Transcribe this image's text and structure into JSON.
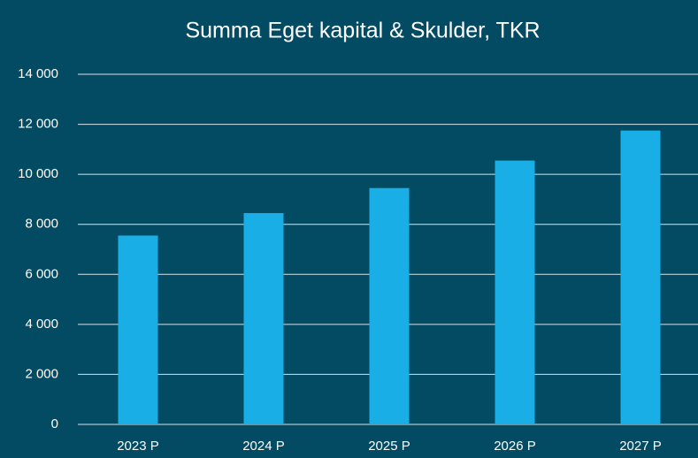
{
  "chart_data": {
    "type": "bar",
    "title": "Summa Eget kapital & Skulder, TKR",
    "categories": [
      "2023 P",
      "2024 P",
      "2025 P",
      "2026 P",
      "2027 P"
    ],
    "values": [
      7550,
      8450,
      9450,
      10550,
      11750
    ],
    "color": "#1aaee6",
    "ylim": [
      0,
      14000
    ],
    "yticks": [
      0,
      {
        "value": 2000,
        "label": "2 000"
      },
      {
        "value": 4000,
        "label": "4 000"
      },
      {
        "value": 6000,
        "label": "6 000"
      },
      {
        "value": 8000,
        "label": "8 000"
      },
      {
        "value": 10000,
        "label": "10 000"
      },
      {
        "value": 12000,
        "label": "12 000"
      },
      {
        "value": 14000,
        "label": "14 000"
      }
    ],
    "grid": true
  }
}
